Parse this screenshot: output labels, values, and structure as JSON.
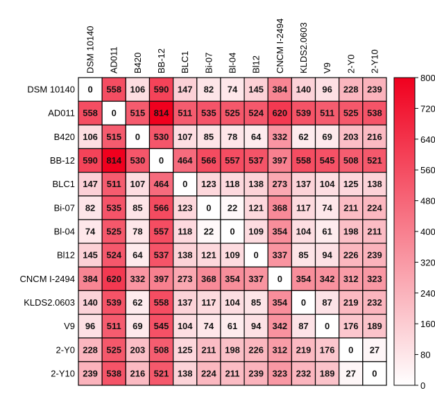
{
  "chart_data": {
    "type": "heatmap",
    "title": "",
    "labels": [
      "DSM 10140",
      "AD011",
      "B420",
      "BB-12",
      "BLC1",
      "Bi-07",
      "Bl-04",
      "Bl12",
      "CNCM I-2494",
      "KLDS2.0603",
      "V9",
      "2-Y0",
      "2-Y10"
    ],
    "matrix": [
      [
        0,
        558,
        106,
        590,
        147,
        82,
        74,
        145,
        384,
        140,
        96,
        228,
        239
      ],
      [
        558,
        0,
        515,
        814,
        511,
        535,
        525,
        524,
        620,
        539,
        511,
        525,
        538
      ],
      [
        106,
        515,
        0,
        530,
        107,
        85,
        78,
        64,
        332,
        62,
        69,
        203,
        216
      ],
      [
        590,
        814,
        530,
        0,
        464,
        566,
        557,
        537,
        397,
        558,
        545,
        508,
        521
      ],
      [
        147,
        511,
        107,
        464,
        0,
        123,
        118,
        138,
        273,
        137,
        104,
        125,
        138
      ],
      [
        82,
        535,
        85,
        566,
        123,
        0,
        22,
        121,
        368,
        117,
        74,
        211,
        224
      ],
      [
        74,
        525,
        78,
        557,
        118,
        22,
        0,
        109,
        354,
        104,
        61,
        198,
        211
      ],
      [
        145,
        524,
        64,
        537,
        138,
        121,
        109,
        0,
        337,
        85,
        94,
        226,
        239
      ],
      [
        384,
        620,
        332,
        397,
        273,
        368,
        354,
        337,
        0,
        354,
        342,
        312,
        323
      ],
      [
        140,
        539,
        62,
        558,
        137,
        117,
        104,
        85,
        354,
        0,
        87,
        219,
        232
      ],
      [
        96,
        511,
        69,
        545,
        104,
        74,
        61,
        94,
        342,
        87,
        0,
        176,
        189
      ],
      [
        228,
        525,
        203,
        508,
        125,
        211,
        198,
        226,
        312,
        219,
        176,
        0,
        27
      ],
      [
        239,
        538,
        216,
        521,
        138,
        224,
        211,
        239,
        323,
        232,
        189,
        27,
        0
      ]
    ],
    "colorbar": {
      "range": [
        0,
        800
      ],
      "ticks": [
        "800",
        "720",
        "640",
        "560",
        "480",
        "400",
        "320",
        "240",
        "160",
        "80",
        "0"
      ],
      "low_color": "#ffffff",
      "high_color": "#f0001e"
    }
  }
}
